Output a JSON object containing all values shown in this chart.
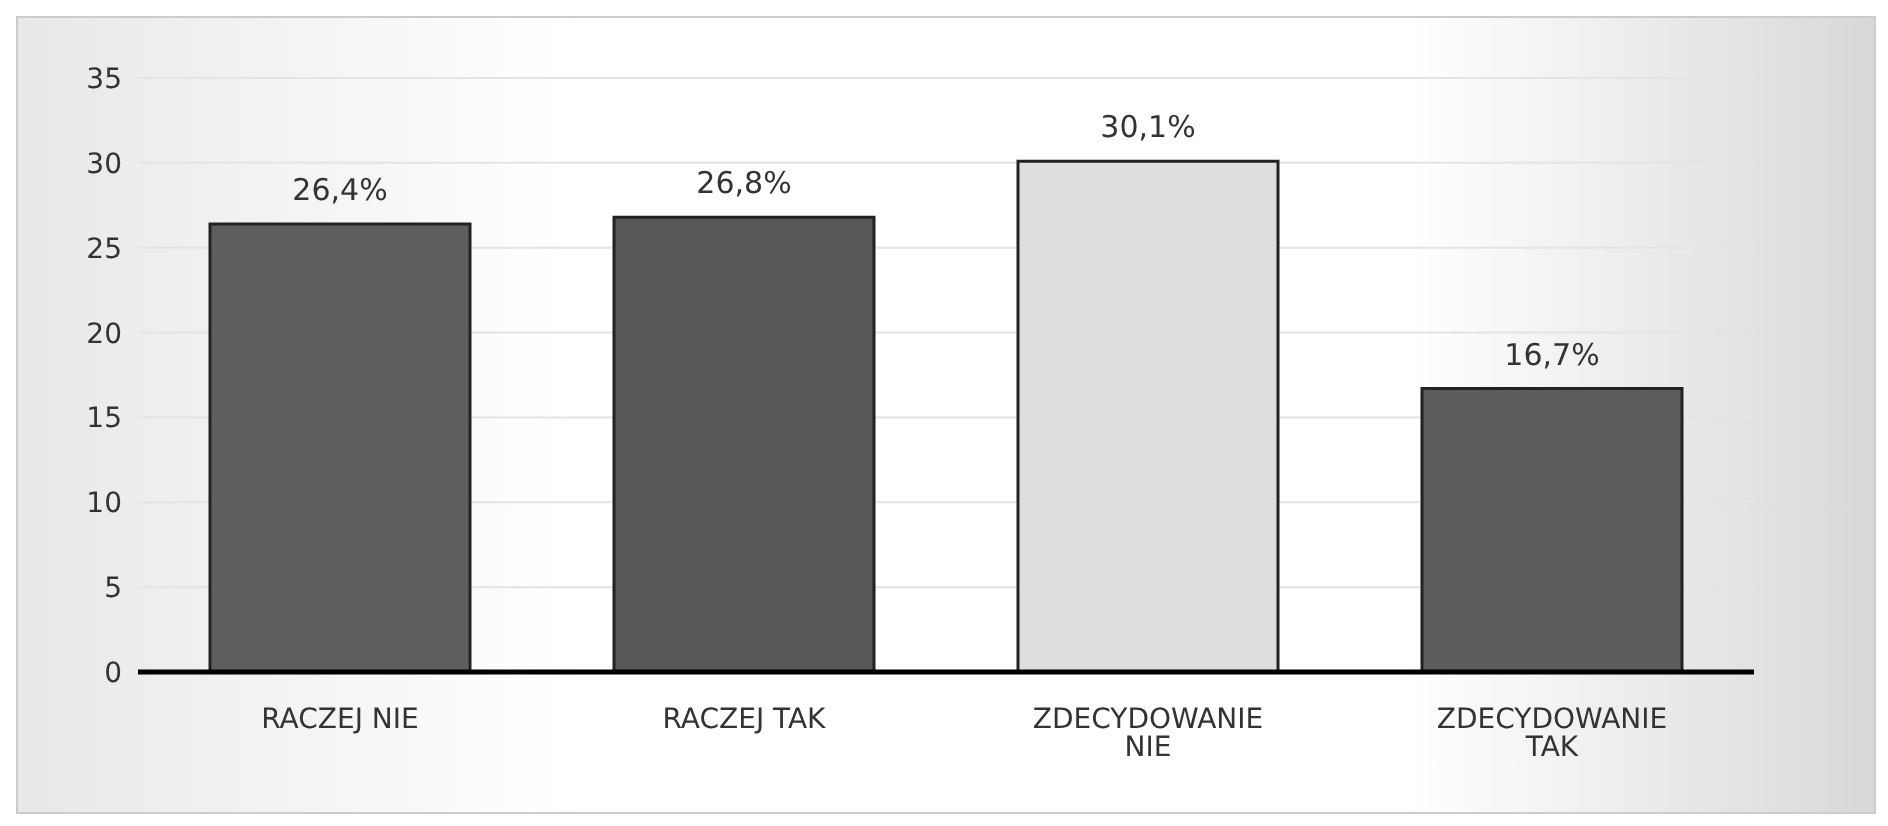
{
  "chart_data": {
    "type": "bar",
    "categories": [
      "RACZEJ NIE",
      "RACZEJ TAK",
      "ZDECYDOWANIE NIE",
      "ZDECYDOWANIE TAK"
    ],
    "values": [
      26.4,
      26.8,
      30.1,
      16.7
    ],
    "colors": [
      "#5e5e5e",
      "#575757",
      "#dedede",
      "#5c5c5c"
    ],
    "value_labels": [
      "26,4%",
      "26,8%",
      "30,1%",
      "16,7%"
    ],
    "ylim": [
      0,
      35
    ],
    "yticks": [
      0,
      5,
      10,
      15,
      20,
      25,
      30,
      35
    ],
    "grid": "y"
  }
}
